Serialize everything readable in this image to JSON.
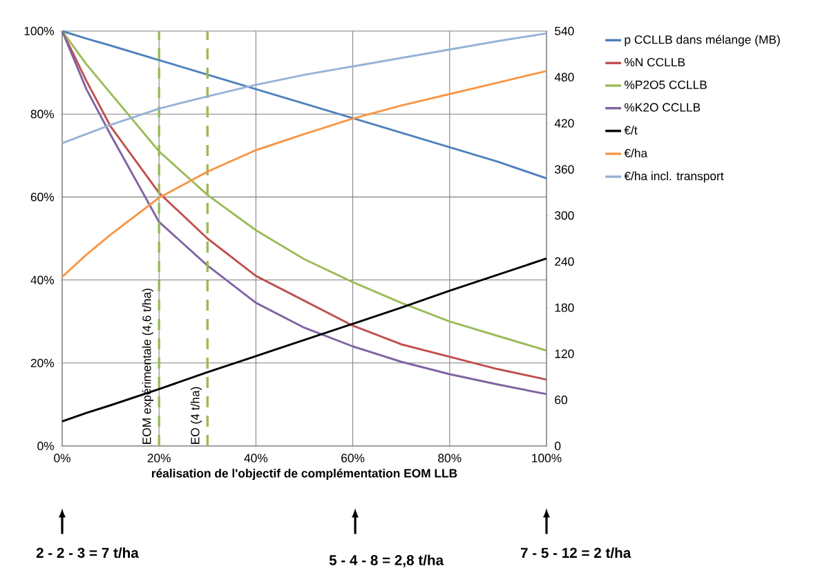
{
  "chart_data": {
    "type": "line",
    "xlabel": "réalisation de l'objectif de complémentation EOM LLB",
    "x": [
      0,
      5,
      10,
      20,
      30,
      40,
      50,
      60,
      70,
      80,
      90,
      100
    ],
    "xlim": [
      0,
      100
    ],
    "xticks": [
      {
        "value": 0,
        "label": "0%"
      },
      {
        "value": 20,
        "label": "20%"
      },
      {
        "value": 40,
        "label": "40%"
      },
      {
        "value": 60,
        "label": "60%"
      },
      {
        "value": 80,
        "label": "80%"
      },
      {
        "value": 100,
        "label": "100%"
      }
    ],
    "ylim": [
      0,
      100
    ],
    "yticks": [
      {
        "value": 0,
        "label": "0%"
      },
      {
        "value": 20,
        "label": "20%"
      },
      {
        "value": 40,
        "label": "40%"
      },
      {
        "value": 60,
        "label": "60%"
      },
      {
        "value": 80,
        "label": "80%"
      },
      {
        "value": 100,
        "label": "100%"
      }
    ],
    "y2lim": [
      0,
      540
    ],
    "y2ticks": [
      0,
      60,
      120,
      180,
      240,
      300,
      360,
      420,
      480,
      540
    ],
    "grid": true,
    "legend": "right",
    "series": [
      {
        "name": "p CCLLB dans mélange (MB)",
        "color": "#4f81bd",
        "values": [
          100,
          98.2,
          96.5,
          93,
          89.5,
          86,
          82.5,
          79,
          75.5,
          72,
          68.5,
          64.5
        ]
      },
      {
        "name": "%N CCLLB",
        "color": "#c0504d",
        "values": [
          100,
          88,
          77,
          61,
          50,
          41,
          35,
          29,
          24.5,
          21.5,
          18.5,
          16
        ]
      },
      {
        "name": "%P2O5 CCLLB",
        "color": "#9bbb59",
        "values": [
          100,
          92,
          85,
          71,
          60.5,
          52,
          45,
          39.5,
          34.5,
          30,
          26.5,
          23
        ]
      },
      {
        "name": "%K2O CCLLB",
        "color": "#8064a2",
        "values": [
          100,
          86,
          75,
          54,
          43.5,
          34.5,
          28.5,
          24,
          20.3,
          17.3,
          14.8,
          12.5
        ]
      },
      {
        "name": "€/t",
        "color": "#000000",
        "axis": "y2",
        "values": [
          32,
          43,
          53,
          74,
          96,
          117,
          138,
          159,
          180,
          202,
          223,
          244
        ]
      },
      {
        "name": "€/ha",
        "color": "#f79646",
        "axis": "y2",
        "values": [
          220,
          249,
          275,
          323,
          357,
          385,
          406,
          426,
          443,
          458,
          473,
          488
        ]
      },
      {
        "name": "€/ha incl. transport",
        "color": "#95b3d7",
        "axis": "y2",
        "values": [
          394,
          406,
          418,
          439,
          455,
          470,
          483,
          494,
          505,
          516,
          527,
          537
        ]
      }
    ],
    "ref_lines": [
      {
        "axis": "x",
        "value": 20,
        "label": "EOM expérimentale (4,6 t/ha)",
        "color": "#9bbb59",
        "line_style": "dashed"
      },
      {
        "axis": "x",
        "value": 30,
        "label": "EO (4 t/ha)",
        "color": "#9bbb59",
        "line_style": "dashed"
      }
    ],
    "annotations": [
      "2 - 2 - 3 = 7 t/ha",
      "5 - 4 - 8 = 2,8 t/ha",
      "7 - 5 - 12 = 2 t/ha"
    ]
  }
}
